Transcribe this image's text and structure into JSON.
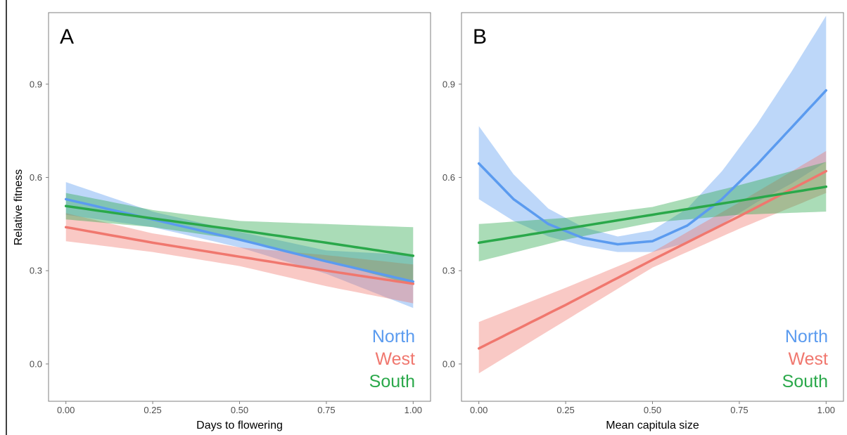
{
  "figure": {
    "ylabel": "Relative fitness",
    "legend": {
      "placement": "bottom-right",
      "entries": [
        {
          "label": "North",
          "color": "#5b9bef"
        },
        {
          "label": "West",
          "color": "#f0776e"
        },
        {
          "label": "South",
          "color": "#2aa84a"
        }
      ]
    }
  },
  "chart_data": [
    {
      "type": "line",
      "panel_label": "A",
      "xlabel": "Days to flowering",
      "ylabel": "Relative fitness",
      "xlim": [
        -0.05,
        1.05
      ],
      "ylim": [
        -0.12,
        1.13
      ],
      "xticks": [
        0.0,
        0.25,
        0.5,
        0.75,
        1.0
      ],
      "xtick_labels": [
        "0.00",
        "0.25",
        "0.50",
        "0.75",
        "1.00"
      ],
      "yticks": [
        0.0,
        0.3,
        0.6,
        0.9
      ],
      "ytick_labels": [
        "0.0",
        "0.3",
        "0.6",
        "0.9"
      ],
      "grid": false,
      "legend": "bottom-right",
      "series": [
        {
          "name": "North",
          "color": "#5b9bef",
          "x": [
            0.0,
            0.25,
            0.5,
            0.75,
            1.0
          ],
          "y": [
            0.53,
            0.465,
            0.4,
            0.33,
            0.265
          ],
          "lower": [
            0.48,
            0.44,
            0.375,
            0.29,
            0.18
          ],
          "upper": [
            0.585,
            0.49,
            0.425,
            0.365,
            0.35
          ]
        },
        {
          "name": "West",
          "color": "#f0776e",
          "x": [
            0.0,
            0.25,
            0.5,
            0.75,
            1.0
          ],
          "y": [
            0.44,
            0.39,
            0.345,
            0.3,
            0.258
          ],
          "lower": [
            0.395,
            0.36,
            0.315,
            0.25,
            0.195
          ],
          "upper": [
            0.485,
            0.42,
            0.375,
            0.35,
            0.32
          ]
        },
        {
          "name": "South",
          "color": "#2aa84a",
          "x": [
            0.0,
            0.25,
            0.5,
            0.75,
            1.0
          ],
          "y": [
            0.508,
            0.468,
            0.43,
            0.39,
            0.348
          ],
          "lower": [
            0.465,
            0.44,
            0.4,
            0.33,
            0.255
          ],
          "upper": [
            0.55,
            0.495,
            0.46,
            0.45,
            0.44
          ]
        }
      ]
    },
    {
      "type": "line",
      "panel_label": "B",
      "xlabel": "Mean capitula size",
      "ylabel": "",
      "xlim": [
        -0.05,
        1.05
      ],
      "ylim": [
        -0.12,
        1.13
      ],
      "xticks": [
        0.0,
        0.25,
        0.5,
        0.75,
        1.0
      ],
      "xtick_labels": [
        "0.00",
        "0.25",
        "0.50",
        "0.75",
        "1.00"
      ],
      "yticks": [
        0.0,
        0.3,
        0.6,
        0.9
      ],
      "ytick_labels": [
        "0.0",
        "0.3",
        "0.6",
        "0.9"
      ],
      "grid": false,
      "legend": "bottom-right",
      "series": [
        {
          "name": "North",
          "color": "#5b9bef",
          "x": [
            0.0,
            0.1,
            0.2,
            0.3,
            0.4,
            0.5,
            0.6,
            0.7,
            0.8,
            0.9,
            1.0
          ],
          "y": [
            0.645,
            0.53,
            0.45,
            0.405,
            0.385,
            0.395,
            0.445,
            0.53,
            0.64,
            0.76,
            0.88
          ],
          "lower": [
            0.53,
            0.46,
            0.41,
            0.38,
            0.36,
            0.36,
            0.39,
            0.45,
            0.52,
            0.58,
            0.65
          ],
          "upper": [
            0.765,
            0.61,
            0.5,
            0.44,
            0.41,
            0.43,
            0.5,
            0.62,
            0.77,
            0.94,
            1.12
          ]
        },
        {
          "name": "West",
          "color": "#f0776e",
          "x": [
            0.0,
            0.25,
            0.5,
            0.75,
            1.0
          ],
          "y": [
            0.05,
            0.19,
            0.335,
            0.475,
            0.62
          ],
          "lower": [
            -0.03,
            0.14,
            0.31,
            0.435,
            0.55
          ],
          "upper": [
            0.135,
            0.245,
            0.36,
            0.52,
            0.685
          ]
        },
        {
          "name": "South",
          "color": "#2aa84a",
          "x": [
            0.0,
            0.25,
            0.5,
            0.75,
            1.0
          ],
          "y": [
            0.39,
            0.435,
            0.48,
            0.525,
            0.57
          ],
          "lower": [
            0.33,
            0.4,
            0.455,
            0.48,
            0.49
          ],
          "upper": [
            0.45,
            0.47,
            0.505,
            0.575,
            0.65
          ]
        }
      ]
    }
  ]
}
